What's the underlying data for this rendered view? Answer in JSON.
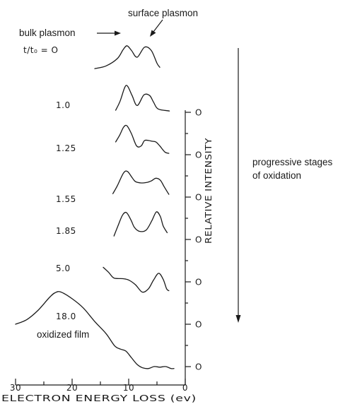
{
  "chart_data": {
    "type": "line",
    "xlabel": "ELECTRON ENERGY LOSS (ev)",
    "ylabel": "RELATIVE INTENSITY",
    "xlim": [
      30,
      0
    ],
    "x_ticks": [
      "30",
      "20",
      "10",
      "0"
    ],
    "y_tick_label": "O",
    "legend_title": "t/t₀ = O",
    "series": [
      {
        "name": "O",
        "x": [
          16,
          14,
          12,
          11,
          10.3,
          9.5,
          8.5,
          7.2,
          6,
          5,
          4.5
        ],
        "y": [
          0.15,
          0.35,
          0.9,
          1.55,
          1.85,
          1.5,
          1.0,
          1.75,
          1.5,
          0.55,
          0.25
        ]
      },
      {
        "name": "1.0",
        "x": [
          12.3,
          11.5,
          10.7,
          10.2,
          9.4,
          8.5,
          7.3,
          6.3,
          5.6,
          4.8,
          2.8
        ],
        "y": [
          0.1,
          0.8,
          1.8,
          1.9,
          1.2,
          0.45,
          1.25,
          1.2,
          0.7,
          0.2,
          0.05
        ]
      },
      {
        "name": "1.25",
        "x": [
          12.3,
          11.6,
          10.9,
          10.3,
          9.5,
          8.6,
          7.8,
          7.2,
          6.4,
          5.9,
          5.2,
          4.5,
          3.6,
          2.9
        ],
        "y": [
          0.9,
          1.4,
          2.0,
          2.1,
          1.5,
          0.6,
          0.6,
          1.0,
          1.0,
          0.95,
          0.9,
          0.6,
          0.15,
          0.05
        ]
      },
      {
        "name": "1.55",
        "x": [
          12.8,
          12.0,
          10.9,
          10.2,
          9.4,
          8.8,
          7.8,
          6.7,
          6.0,
          5.2,
          4.4,
          3.7,
          2.9
        ],
        "y": [
          0.2,
          0.8,
          1.75,
          1.85,
          1.4,
          1.1,
          1.0,
          1.05,
          1.15,
          1.35,
          1.2,
          0.7,
          0.15
        ]
      },
      {
        "name": "1.85",
        "x": [
          12.6,
          11.9,
          11.1,
          10.4,
          9.6,
          9.0,
          8.1,
          6.9,
          5.9,
          5.1,
          4.4,
          3.9,
          3.2
        ],
        "y": [
          0.15,
          0.9,
          1.7,
          1.9,
          1.35,
          0.8,
          0.5,
          0.6,
          1.3,
          1.95,
          1.6,
          0.9,
          0.4
        ]
      },
      {
        "name": "5.0",
        "x": [
          14.5,
          13.5,
          12.6,
          11.0,
          10.0,
          8.8,
          7.6,
          6.5,
          5.6,
          4.7,
          3.9,
          3.3,
          2.9
        ],
        "y": [
          1.35,
          0.95,
          0.55,
          0.5,
          0.4,
          0.05,
          -0.5,
          -0.25,
          0.4,
          0.9,
          0.45,
          -0.25,
          -0.4
        ]
      },
      {
        "name": "18.0",
        "x": [
          30,
          28,
          26,
          24,
          23,
          22,
          20,
          18,
          16,
          14,
          12.5,
          11.5,
          10.5,
          9.5,
          8.5,
          7.5,
          6.5,
          5.5,
          4.5,
          3.5,
          2.5,
          2.0
        ],
        "y": [
          0.0,
          0.35,
          1.05,
          2.0,
          2.35,
          2.4,
          1.9,
          1.2,
          0.2,
          -0.7,
          -1.6,
          -1.85,
          -2.0,
          -2.5,
          -3.0,
          -3.25,
          -3.3,
          -3.15,
          -3.2,
          -3.15,
          -3.3,
          -3.3
        ]
      }
    ],
    "annotations": {
      "surface_plasmon": "surface plasmon",
      "bulk_plasmon": "bulk plasmon",
      "progressive": [
        "progressive stages",
        "of oxidation"
      ],
      "oxidized": "oxidized film"
    }
  }
}
